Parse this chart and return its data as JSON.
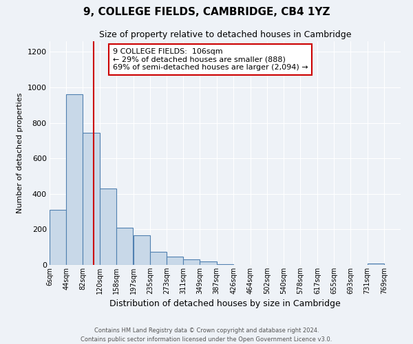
{
  "title": "9, COLLEGE FIELDS, CAMBRIDGE, CB4 1YZ",
  "subtitle": "Size of property relative to detached houses in Cambridge",
  "xlabel": "Distribution of detached houses by size in Cambridge",
  "ylabel": "Number of detached properties",
  "bin_labels": [
    "6sqm",
    "44sqm",
    "82sqm",
    "120sqm",
    "158sqm",
    "197sqm",
    "235sqm",
    "273sqm",
    "311sqm",
    "349sqm",
    "387sqm",
    "426sqm",
    "464sqm",
    "502sqm",
    "540sqm",
    "578sqm",
    "617sqm",
    "655sqm",
    "693sqm",
    "731sqm",
    "769sqm"
  ],
  "bin_edges": [
    6,
    44,
    82,
    120,
    158,
    197,
    235,
    273,
    311,
    349,
    387,
    426,
    464,
    502,
    540,
    578,
    617,
    655,
    693,
    731,
    769
  ],
  "bar_heights": [
    310,
    960,
    745,
    430,
    210,
    165,
    75,
    48,
    32,
    18,
    5,
    0,
    0,
    0,
    0,
    0,
    0,
    0,
    0,
    8,
    0
  ],
  "bar_color": "#c8d8e8",
  "bar_edge_color": "#5080b0",
  "property_size": 106,
  "vline_color": "#cc0000",
  "ylim": [
    0,
    1260
  ],
  "yticks": [
    0,
    200,
    400,
    600,
    800,
    1000,
    1200
  ],
  "annotation_text": "9 COLLEGE FIELDS:  106sqm\n← 29% of detached houses are smaller (888)\n69% of semi-detached houses are larger (2,094) →",
  "annotation_box_color": "#ffffff",
  "annotation_box_edge": "#cc0000",
  "footer_line1": "Contains HM Land Registry data © Crown copyright and database right 2024.",
  "footer_line2": "Contains public sector information licensed under the Open Government Licence v3.0.",
  "background_color": "#eef2f7",
  "plot_background": "#eef2f7",
  "grid_color": "#ffffff",
  "title_fontsize": 11,
  "subtitle_fontsize": 9
}
